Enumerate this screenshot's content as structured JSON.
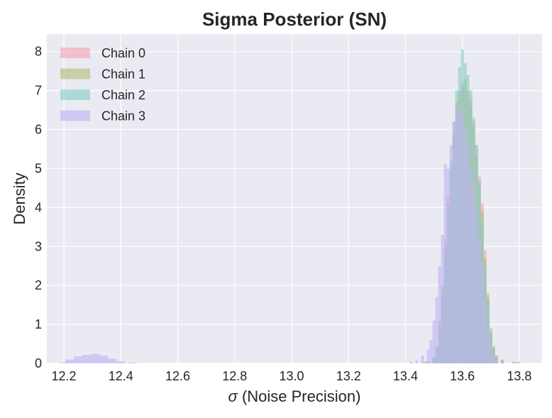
{
  "chart_data": {
    "type": "histogram",
    "title": "Sigma Posterior (SN)",
    "xlabel_symbol": "σ",
    "xlabel_text": " (Noise Precision)",
    "ylabel": "Density",
    "xlim": [
      12.14,
      13.88
    ],
    "ylim": [
      0,
      8.45
    ],
    "xticks": [
      12.2,
      12.4,
      12.6,
      12.8,
      13.0,
      13.2,
      13.4,
      13.6,
      13.8
    ],
    "xtick_labels": [
      "12.2",
      "12.4",
      "12.6",
      "12.8",
      "13.0",
      "13.2",
      "13.4",
      "13.6",
      "13.8"
    ],
    "yticks": [
      0,
      1,
      2,
      3,
      4,
      5,
      6,
      7,
      8
    ],
    "ytick_labels": [
      "0",
      "1",
      "2",
      "3",
      "4",
      "5",
      "6",
      "7",
      "8"
    ],
    "grid": true,
    "legend_position": "top-left",
    "background": "#eaeaf2",
    "series": [
      {
        "name": "Chain 0",
        "color": "#f5a3b5",
        "bins": [
          [
            13.48,
            0.05
          ],
          [
            13.5,
            0.15
          ],
          [
            13.51,
            0.45
          ],
          [
            13.52,
            1.1
          ],
          [
            13.53,
            2.0
          ],
          [
            13.54,
            3.2
          ],
          [
            13.55,
            4.3
          ],
          [
            13.56,
            5.1
          ],
          [
            13.57,
            5.8
          ],
          [
            13.58,
            6.6
          ],
          [
            13.59,
            6.9
          ],
          [
            13.6,
            7.2
          ],
          [
            13.61,
            7.1
          ],
          [
            13.62,
            6.9
          ],
          [
            13.63,
            6.8
          ],
          [
            13.64,
            6.2
          ],
          [
            13.65,
            5.6
          ],
          [
            13.66,
            4.8
          ],
          [
            13.67,
            4.1
          ],
          [
            13.68,
            2.9
          ],
          [
            13.69,
            1.8
          ],
          [
            13.7,
            0.8
          ],
          [
            13.71,
            0.4
          ],
          [
            13.72,
            0.2
          ],
          [
            13.74,
            0.08
          ],
          [
            13.79,
            0.04
          ]
        ]
      },
      {
        "name": "Chain 1",
        "color": "#b5bd7c",
        "bins": [
          [
            13.47,
            0.05
          ],
          [
            13.5,
            0.15
          ],
          [
            13.51,
            0.4
          ],
          [
            13.52,
            1.0
          ],
          [
            13.53,
            1.9
          ],
          [
            13.54,
            3.0
          ],
          [
            13.55,
            4.1
          ],
          [
            13.56,
            5.0
          ],
          [
            13.57,
            5.9
          ],
          [
            13.58,
            6.7
          ],
          [
            13.59,
            7.0
          ],
          [
            13.6,
            7.1
          ],
          [
            13.61,
            7.3
          ],
          [
            13.62,
            7.0
          ],
          [
            13.63,
            6.6
          ],
          [
            13.64,
            6.1
          ],
          [
            13.65,
            5.3
          ],
          [
            13.66,
            4.6
          ],
          [
            13.67,
            3.9
          ],
          [
            13.68,
            2.7
          ],
          [
            13.69,
            1.7
          ],
          [
            13.7,
            0.9
          ],
          [
            13.71,
            0.45
          ],
          [
            13.72,
            0.2
          ],
          [
            13.74,
            0.1
          ],
          [
            13.78,
            0.05
          ]
        ]
      },
      {
        "name": "Chain 2",
        "color": "#86cdc6",
        "bins": [
          [
            13.48,
            0.05
          ],
          [
            13.5,
            0.15
          ],
          [
            13.51,
            0.4
          ],
          [
            13.52,
            0.9
          ],
          [
            13.53,
            1.8
          ],
          [
            13.54,
            2.9
          ],
          [
            13.55,
            4.0
          ],
          [
            13.56,
            5.2
          ],
          [
            13.57,
            6.2
          ],
          [
            13.58,
            7.0
          ],
          [
            13.59,
            7.6
          ],
          [
            13.6,
            8.05
          ],
          [
            13.61,
            7.7
          ],
          [
            13.62,
            7.4
          ],
          [
            13.63,
            7.0
          ],
          [
            13.64,
            6.3
          ],
          [
            13.65,
            5.6
          ],
          [
            13.66,
            4.7
          ],
          [
            13.67,
            3.7
          ],
          [
            13.68,
            2.5
          ],
          [
            13.69,
            1.6
          ],
          [
            13.7,
            0.8
          ],
          [
            13.71,
            0.4
          ],
          [
            13.72,
            0.15
          ],
          [
            13.74,
            0.06
          ],
          [
            13.8,
            0.03
          ]
        ]
      },
      {
        "name": "Chain 3",
        "color": "#bfb3f5",
        "bins": [
          [
            12.2,
            0.02
          ],
          [
            12.22,
            0.1
          ],
          [
            12.25,
            0.18
          ],
          [
            12.28,
            0.22
          ],
          [
            12.31,
            0.24
          ],
          [
            12.34,
            0.2
          ],
          [
            12.37,
            0.12
          ],
          [
            12.4,
            0.05
          ],
          [
            12.44,
            0.02
          ],
          [
            13.42,
            0.04
          ],
          [
            13.44,
            0.08
          ],
          [
            13.46,
            0.2
          ],
          [
            13.48,
            0.35
          ],
          [
            13.49,
            0.6
          ],
          [
            13.5,
            1.1
          ],
          [
            13.51,
            1.7
          ],
          [
            13.52,
            2.5
          ],
          [
            13.53,
            3.3
          ],
          [
            13.54,
            5.1
          ],
          [
            13.55,
            5.0
          ],
          [
            13.56,
            5.6
          ],
          [
            13.57,
            6.2
          ],
          [
            13.58,
            6.5
          ],
          [
            13.59,
            6.6
          ],
          [
            13.6,
            6.4
          ],
          [
            13.61,
            6.0
          ],
          [
            13.62,
            5.6
          ],
          [
            13.63,
            5.0
          ],
          [
            13.64,
            4.5
          ],
          [
            13.65,
            3.9
          ],
          [
            13.66,
            3.2
          ],
          [
            13.67,
            2.5
          ],
          [
            13.68,
            1.6
          ],
          [
            13.69,
            0.9
          ],
          [
            13.7,
            0.45
          ],
          [
            13.71,
            0.2
          ],
          [
            13.72,
            0.08
          ],
          [
            13.74,
            0.03
          ]
        ]
      }
    ]
  }
}
